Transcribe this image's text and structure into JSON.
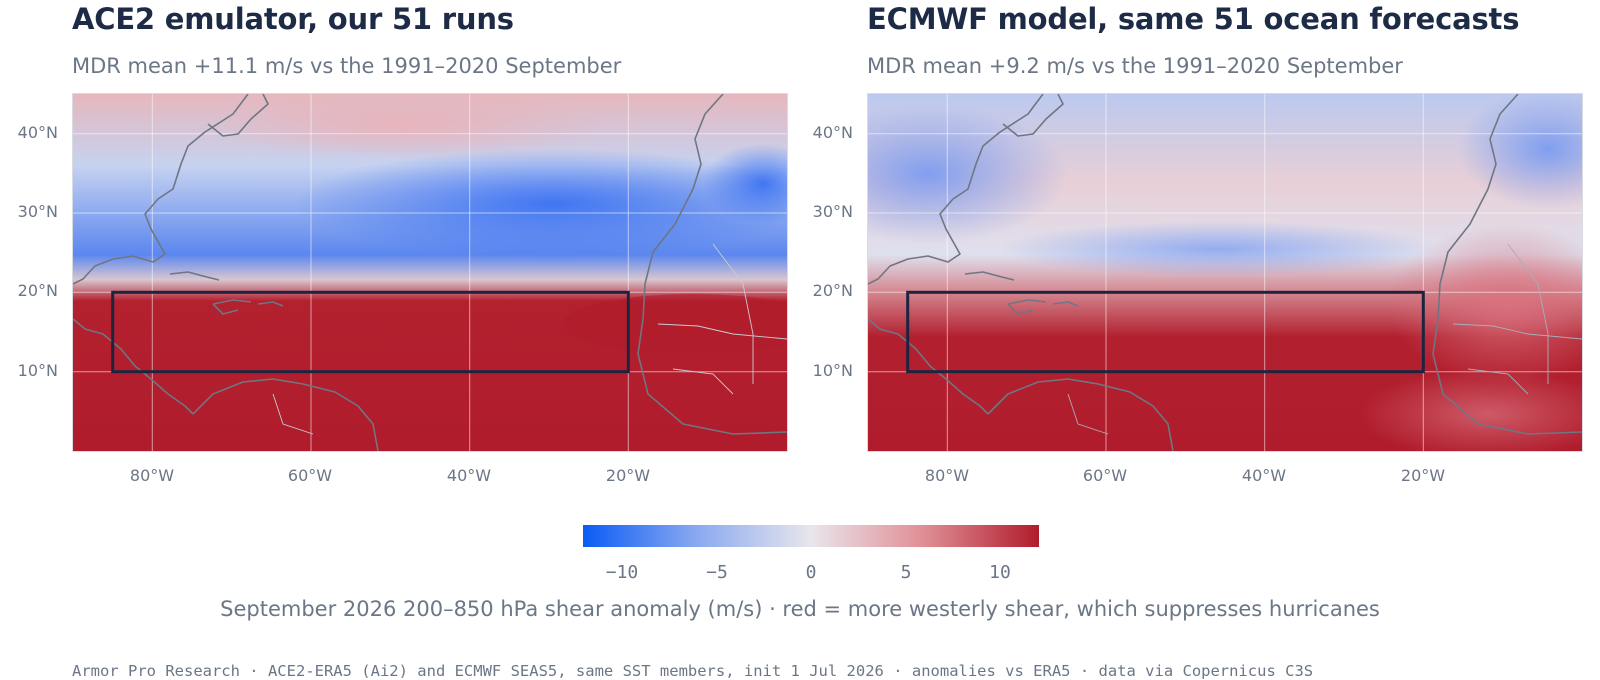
{
  "panels": [
    {
      "title": "ACE2 emulator, our 51 runs",
      "subtitle": "MDR mean +11.1 m/s vs the 1991–2020 September"
    },
    {
      "title": "ECMWF model, same 51 ocean forecasts",
      "subtitle": "MDR mean +9.2 m/s vs the 1991–2020 September"
    }
  ],
  "map_extent": {
    "lon": [
      -90,
      0
    ],
    "lat": [
      0,
      45
    ]
  },
  "mdr_box": {
    "lon": [
      -85,
      -20
    ],
    "lat": [
      10,
      20
    ]
  },
  "lat_labels": [
    "40°N",
    "30°N",
    "20°N",
    "10°N"
  ],
  "lon_labels": [
    "80°W",
    "60°W",
    "40°W",
    "20°W"
  ],
  "colorbar": {
    "ticks": [
      "−10",
      "−5",
      "0",
      "5",
      "10"
    ],
    "range": [
      -12,
      12
    ],
    "colors": [
      "#0b5cf5",
      "#8aa9f0",
      "#e8e6ec",
      "#df8d93",
      "#b01c2c"
    ]
  },
  "caption": "September 2026 200–850 hPa shear anomaly (m/s) · red = more westerly shear, which suppresses hurricanes",
  "footer": "Armor Pro Research · ACE2-ERA5 (Ai2) and ECMWF SEAS5, same SST members, init 1 Jul 2026 · anomalies vs ERA5 · data via Copernicus C3S"
}
